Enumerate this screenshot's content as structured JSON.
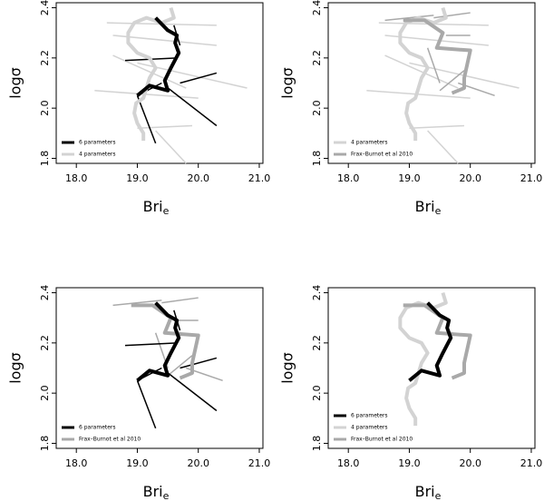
{
  "chart_data": [
    {
      "type": "line",
      "x_label": "Bri",
      "x_label_subscript": "e",
      "y_label": "logσ",
      "xlim": [
        17.67,
        21.06
      ],
      "ylim": [
        1.78,
        2.42
      ],
      "xticks": [
        {
          "value": 18,
          "label": "18.0"
        },
        {
          "value": 19,
          "label": "19.0"
        },
        {
          "value": 20,
          "label": "20.0"
        },
        {
          "value": 21,
          "label": "21.0"
        }
      ],
      "yticks": [
        1.8,
        {
          "value": 2,
          "label": "2.0"
        },
        2.2,
        2.4
      ],
      "legend": "bottomleft",
      "series": [
        {
          "name": "4 parameters",
          "color": "#d3d3d3",
          "legend_order": 1,
          "x": [
            19.1,
            19.1,
            19.0,
            18.95,
            18.98,
            19.1,
            19.15,
            19.2,
            19.3,
            19.2,
            19.0,
            18.85,
            18.85,
            18.95,
            19.15,
            19.4,
            19.6,
            19.55
          ],
          "y": [
            1.87,
            1.9,
            1.94,
            1.98,
            2.02,
            2.04,
            2.08,
            2.12,
            2.16,
            2.2,
            2.22,
            2.26,
            2.3,
            2.34,
            2.36,
            2.34,
            2.36,
            2.4
          ],
          "seg_x": [
            [
              18.3,
              20.0
            ],
            [
              18.6,
              20.3
            ],
            [
              18.5,
              20.3
            ],
            [
              18.6,
              19.8
            ],
            [
              19.0,
              19.9
            ],
            [
              19.0,
              20.8
            ],
            [
              19.3,
              19.8
            ]
          ],
          "seg_y": [
            [
              2.07,
              2.04
            ],
            [
              2.29,
              2.25
            ],
            [
              2.34,
              2.33
            ],
            [
              2.21,
              2.08
            ],
            [
              1.92,
              1.93
            ],
            [
              2.18,
              2.08
            ],
            [
              1.91,
              1.78
            ]
          ]
        },
        {
          "name": "6 parameters",
          "color": "#000000",
          "legend_order": 0,
          "x": [
            19.3,
            19.5,
            19.65,
            19.62,
            19.68,
            19.55,
            19.45,
            19.5,
            19.2,
            19.0
          ],
          "y": [
            2.36,
            2.31,
            2.29,
            2.26,
            2.22,
            2.16,
            2.11,
            2.07,
            2.09,
            2.05
          ],
          "seg_x": [
            [
              19.45,
              20.3
            ],
            [
              19.0,
              19.3
            ],
            [
              18.8,
              19.65
            ],
            [
              19.7,
              20.3
            ],
            [
              19.0,
              19.4
            ],
            [
              19.6,
              19.7
            ]
          ],
          "seg_y": [
            [
              2.09,
              1.93
            ],
            [
              2.05,
              1.86
            ],
            [
              2.19,
              2.2
            ],
            [
              2.1,
              2.14
            ],
            [
              2.05,
              2.1
            ],
            [
              2.33,
              2.25
            ]
          ]
        }
      ]
    },
    {
      "type": "line",
      "x_label": "Bri",
      "x_label_subscript": "e",
      "y_label": "logσ",
      "xlim": [
        17.67,
        21.06
      ],
      "ylim": [
        1.78,
        2.42
      ],
      "xticks": [
        {
          "value": 18,
          "label": "18.0"
        },
        {
          "value": 19,
          "label": "19.0"
        },
        {
          "value": 20,
          "label": "20.0"
        },
        {
          "value": 21,
          "label": "21.0"
        }
      ],
      "yticks": [
        1.8,
        {
          "value": 2,
          "label": "2.0"
        },
        2.2,
        2.4
      ],
      "legend": "bottomleft",
      "series": [
        {
          "name": "4 parameters",
          "color": "#d3d3d3",
          "legend_order": 0,
          "x": [
            19.1,
            19.1,
            19.0,
            18.95,
            18.98,
            19.1,
            19.15,
            19.2,
            19.3,
            19.2,
            19.0,
            18.85,
            18.85,
            18.95,
            19.15,
            19.4,
            19.6,
            19.55
          ],
          "y": [
            1.87,
            1.9,
            1.94,
            1.98,
            2.02,
            2.04,
            2.08,
            2.12,
            2.16,
            2.2,
            2.22,
            2.26,
            2.3,
            2.34,
            2.36,
            2.34,
            2.36,
            2.4
          ],
          "seg_x": [
            [
              18.3,
              20.0
            ],
            [
              18.6,
              20.3
            ],
            [
              18.5,
              20.3
            ],
            [
              18.6,
              19.8
            ],
            [
              19.0,
              19.9
            ],
            [
              19.0,
              20.8
            ],
            [
              19.3,
              19.8
            ]
          ],
          "seg_y": [
            [
              2.07,
              2.04
            ],
            [
              2.29,
              2.25
            ],
            [
              2.34,
              2.33
            ],
            [
              2.21,
              2.08
            ],
            [
              1.92,
              1.93
            ],
            [
              2.18,
              2.08
            ],
            [
              1.91,
              1.78
            ]
          ]
        },
        {
          "name": "Frax–Burnot et al 2010",
          "color": "#a9a9a9",
          "legend_order": 1,
          "x": [
            18.9,
            19.25,
            19.55,
            19.45,
            20.0,
            19.9,
            19.9,
            19.7
          ],
          "y": [
            2.35,
            2.35,
            2.3,
            2.24,
            2.23,
            2.12,
            2.08,
            2.06
          ],
          "seg_x": [
            [
              18.6,
              19.4
            ],
            [
              19.4,
              20.0
            ],
            [
              19.3,
              19.5
            ],
            [
              19.6,
              20.0
            ],
            [
              19.8,
              20.4
            ],
            [
              19.5,
              19.9
            ]
          ],
          "seg_y": [
            [
              2.35,
              2.37
            ],
            [
              2.36,
              2.38
            ],
            [
              2.24,
              2.1
            ],
            [
              2.29,
              2.29
            ],
            [
              2.1,
              2.05
            ],
            [
              2.07,
              2.15
            ]
          ]
        }
      ]
    },
    {
      "type": "line",
      "x_label": "Bri",
      "x_label_subscript": "e",
      "y_label": "logσ",
      "xlim": [
        17.67,
        21.06
      ],
      "ylim": [
        1.78,
        2.42
      ],
      "xticks": [
        {
          "value": 18,
          "label": "18.0"
        },
        {
          "value": 19,
          "label": "19.0"
        },
        {
          "value": 20,
          "label": "20.0"
        },
        {
          "value": 21,
          "label": "21.0"
        }
      ],
      "yticks": [
        1.8,
        {
          "value": 2,
          "label": "2.0"
        },
        2.2,
        2.4
      ],
      "legend": "bottomleft",
      "series": [
        {
          "name": "Frax–Burnot et al 2010",
          "color": "#a9a9a9",
          "legend_order": 1,
          "x": [
            18.9,
            19.25,
            19.55,
            19.45,
            20.0,
            19.9,
            19.9,
            19.7
          ],
          "y": [
            2.35,
            2.35,
            2.3,
            2.24,
            2.23,
            2.12,
            2.08,
            2.06
          ],
          "seg_x": [
            [
              18.6,
              19.4
            ],
            [
              19.4,
              20.0
            ],
            [
              19.3,
              19.5
            ],
            [
              19.6,
              20.0
            ],
            [
              19.8,
              20.4
            ],
            [
              19.5,
              19.9
            ]
          ],
          "seg_y": [
            [
              2.35,
              2.37
            ],
            [
              2.36,
              2.38
            ],
            [
              2.24,
              2.1
            ],
            [
              2.29,
              2.29
            ],
            [
              2.1,
              2.05
            ],
            [
              2.07,
              2.15
            ]
          ]
        },
        {
          "name": "6 parameters",
          "color": "#000000",
          "legend_order": 0,
          "x": [
            19.3,
            19.5,
            19.65,
            19.62,
            19.68,
            19.55,
            19.45,
            19.5,
            19.2,
            19.0
          ],
          "y": [
            2.36,
            2.31,
            2.29,
            2.26,
            2.22,
            2.16,
            2.11,
            2.07,
            2.09,
            2.05
          ],
          "seg_x": [
            [
              19.45,
              20.3
            ],
            [
              19.0,
              19.3
            ],
            [
              18.8,
              19.65
            ],
            [
              19.7,
              20.3
            ],
            [
              19.0,
              19.4
            ],
            [
              19.6,
              19.7
            ]
          ],
          "seg_y": [
            [
              2.09,
              1.93
            ],
            [
              2.05,
              1.86
            ],
            [
              2.19,
              2.2
            ],
            [
              2.1,
              2.14
            ],
            [
              2.05,
              2.1
            ],
            [
              2.33,
              2.25
            ]
          ]
        }
      ]
    },
    {
      "type": "line",
      "x_label": "Bri",
      "x_label_subscript": "e",
      "y_label": "logσ",
      "xlim": [
        17.67,
        21.06
      ],
      "ylim": [
        1.78,
        2.42
      ],
      "xticks": [
        {
          "value": 18,
          "label": "18.0"
        },
        {
          "value": 19,
          "label": "19.0"
        },
        {
          "value": 20,
          "label": "20.0"
        },
        {
          "value": 21,
          "label": "21.0"
        }
      ],
      "yticks": [
        1.8,
        {
          "value": 2,
          "label": "2.0"
        },
        2.2,
        2.4
      ],
      "legend": "bottomleft",
      "series": [
        {
          "name": "4 parameters",
          "color": "#d3d3d3",
          "legend_order": 1,
          "x": [
            19.1,
            19.1,
            19.0,
            18.95,
            18.98,
            19.1,
            19.15,
            19.2,
            19.3,
            19.2,
            19.0,
            18.85,
            18.85,
            18.95,
            19.15,
            19.4,
            19.6,
            19.55
          ],
          "y": [
            1.87,
            1.9,
            1.94,
            1.98,
            2.02,
            2.04,
            2.08,
            2.12,
            2.16,
            2.2,
            2.22,
            2.26,
            2.3,
            2.34,
            2.36,
            2.34,
            2.36,
            2.4
          ]
        },
        {
          "name": "Frax–Burnot et al 2010",
          "color": "#a9a9a9",
          "legend_order": 2,
          "x": [
            18.9,
            19.25,
            19.55,
            19.45,
            20.0,
            19.9,
            19.9,
            19.7
          ],
          "y": [
            2.35,
            2.35,
            2.3,
            2.24,
            2.23,
            2.12,
            2.08,
            2.06
          ]
        },
        {
          "name": "6 parameters",
          "color": "#000000",
          "legend_order": 0,
          "x": [
            19.3,
            19.5,
            19.65,
            19.62,
            19.68,
            19.55,
            19.45,
            19.5,
            19.2,
            19.0
          ],
          "y": [
            2.36,
            2.31,
            2.29,
            2.26,
            2.22,
            2.16,
            2.11,
            2.07,
            2.09,
            2.05
          ]
        }
      ]
    }
  ]
}
